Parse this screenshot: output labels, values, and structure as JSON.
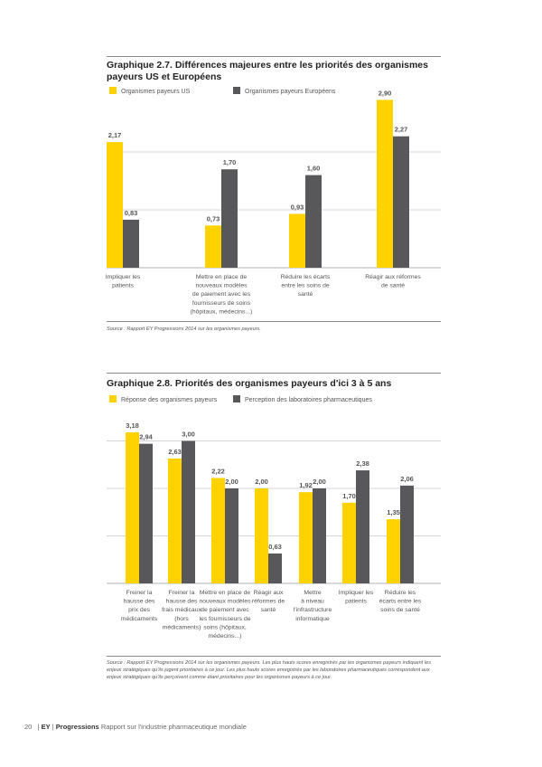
{
  "colors": {
    "yellow": "#FFD200",
    "gray": "#58585A",
    "grid": "#c8c8c8",
    "text": "#555"
  },
  "chart_data": [
    {
      "type": "bar",
      "title": "Graphique 2.7. Différences majeures entre les priorités des organismes payeurs US et Européens",
      "categories": [
        [
          "Impliquer les",
          "patients"
        ],
        [
          "Mettre en place de",
          "nouveaux modèles",
          "de paiement avec les",
          "fournisseurs de soins",
          "(hôpitaux, médecins...)"
        ],
        [
          "Réduire les écarts",
          "entre les soins de",
          "santé"
        ],
        [
          "Réagir aux réformes",
          "de santé"
        ]
      ],
      "series": [
        {
          "name": "Organismes payeurs US",
          "values": [
            2.17,
            0.73,
            0.93,
            2.9
          ],
          "labels": [
            "2,17",
            "0,73",
            "0,93",
            "2,90"
          ]
        },
        {
          "name": "Organismes payeurs Européens",
          "values": [
            0.83,
            1.7,
            1.6,
            2.27
          ],
          "labels": [
            "0,83",
            "1,70",
            "1,60",
            "2,27"
          ]
        }
      ],
      "ylim": [
        0,
        3
      ],
      "grid": true,
      "legend": "top",
      "source": "Source : Rapport EY Progressions 2014 sur les organismes payeurs."
    },
    {
      "type": "bar",
      "title": "Graphique 2.8. Priorités des organismes payeurs d'ici 3 à 5 ans",
      "categories": [
        [
          "Freiner la",
          "hausse des",
          "prix des",
          "médicaments"
        ],
        [
          "Freiner la",
          "hausse des",
          "frais médicaux",
          "(hors",
          "médicaments)"
        ],
        [
          "Mettre en place de",
          "nouveaux modèles",
          "de paiement avec",
          "les fournisseurs de",
          "soins (hôpitaux,",
          "médecins...)"
        ],
        [
          "Réagir aux",
          "réformes de",
          "santé"
        ],
        [
          "Mettre",
          "à niveau",
          "l'infrastructure",
          "informatique"
        ],
        [
          "Impliquer les",
          "patients"
        ],
        [
          "Réduire les",
          "écarts entre les",
          "soins de santé"
        ]
      ],
      "series": [
        {
          "name": "Réponse des organismes payeurs",
          "values": [
            3.18,
            2.63,
            2.22,
            2.0,
            1.92,
            1.7,
            1.35
          ],
          "labels": [
            "3,18",
            "2,63",
            "2,22",
            "2,00",
            "1,92",
            "1,70",
            "1,35"
          ]
        },
        {
          "name": "Perception des laboratoires pharmaceutiques",
          "values": [
            2.94,
            3.0,
            2.0,
            0.63,
            2.0,
            2.38,
            2.06
          ],
          "labels": [
            "2,94",
            "3,00",
            "2,00",
            "0,63",
            "2,00",
            "2,38",
            "2,06"
          ]
        }
      ],
      "ylim": [
        0,
        3.3
      ],
      "grid": true,
      "legend": "top",
      "source": "Source : Rapport EY Progressions 2014 sur les organismes payeurs. Les plus hauts scores enregistrés par les organismes payeurs indiquent les enjeux stratégiques qu'ils jugent prioritaires à ce jour. Les plus hauts scores enregistrés par les laboratoires pharmaceutiques correspondent aux enjeux stratégiques qu'ils perçoivent comme étant prioritaires pour les organismes payeurs à ce jour."
    }
  ],
  "footer": {
    "page": "20",
    "brand": "EY",
    "series": "Progressions",
    "text": "Rapport sur l'industrie pharmaceutique mondiale"
  }
}
